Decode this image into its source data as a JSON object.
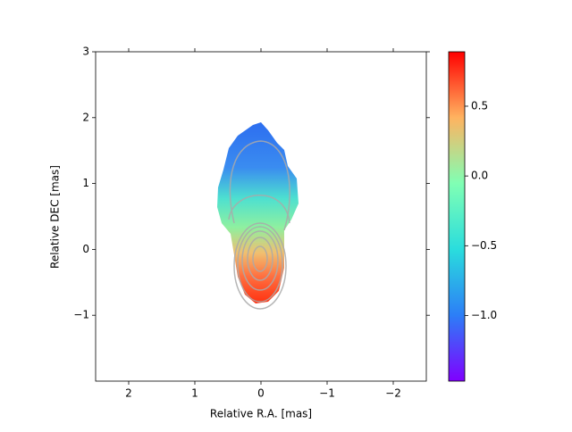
{
  "chart_data": {
    "type": "image",
    "xlabel": "Relative R.A. [mas]",
    "ylabel": "Relative DEC [mas]",
    "xlim": [
      2.5,
      -2.5
    ],
    "ylim": [
      -2,
      3
    ],
    "xticks": [
      2,
      1,
      0,
      {
        "value": -1,
        "label": "−1"
      },
      {
        "value": -2,
        "label": "−2"
      }
    ],
    "yticks": [
      3,
      2,
      1,
      0,
      {
        "value": -1,
        "label": "−1"
      }
    ],
    "colorbar": {
      "clim": [
        -1.47,
        0.89
      ],
      "ticks": [
        {
          "value": 0.5,
          "label": "0.5"
        },
        {
          "value": 0,
          "label": "0.0"
        },
        {
          "value": -0.5,
          "label": "−0.5"
        },
        {
          "value": -1,
          "label": "−1.0"
        }
      ]
    }
  }
}
